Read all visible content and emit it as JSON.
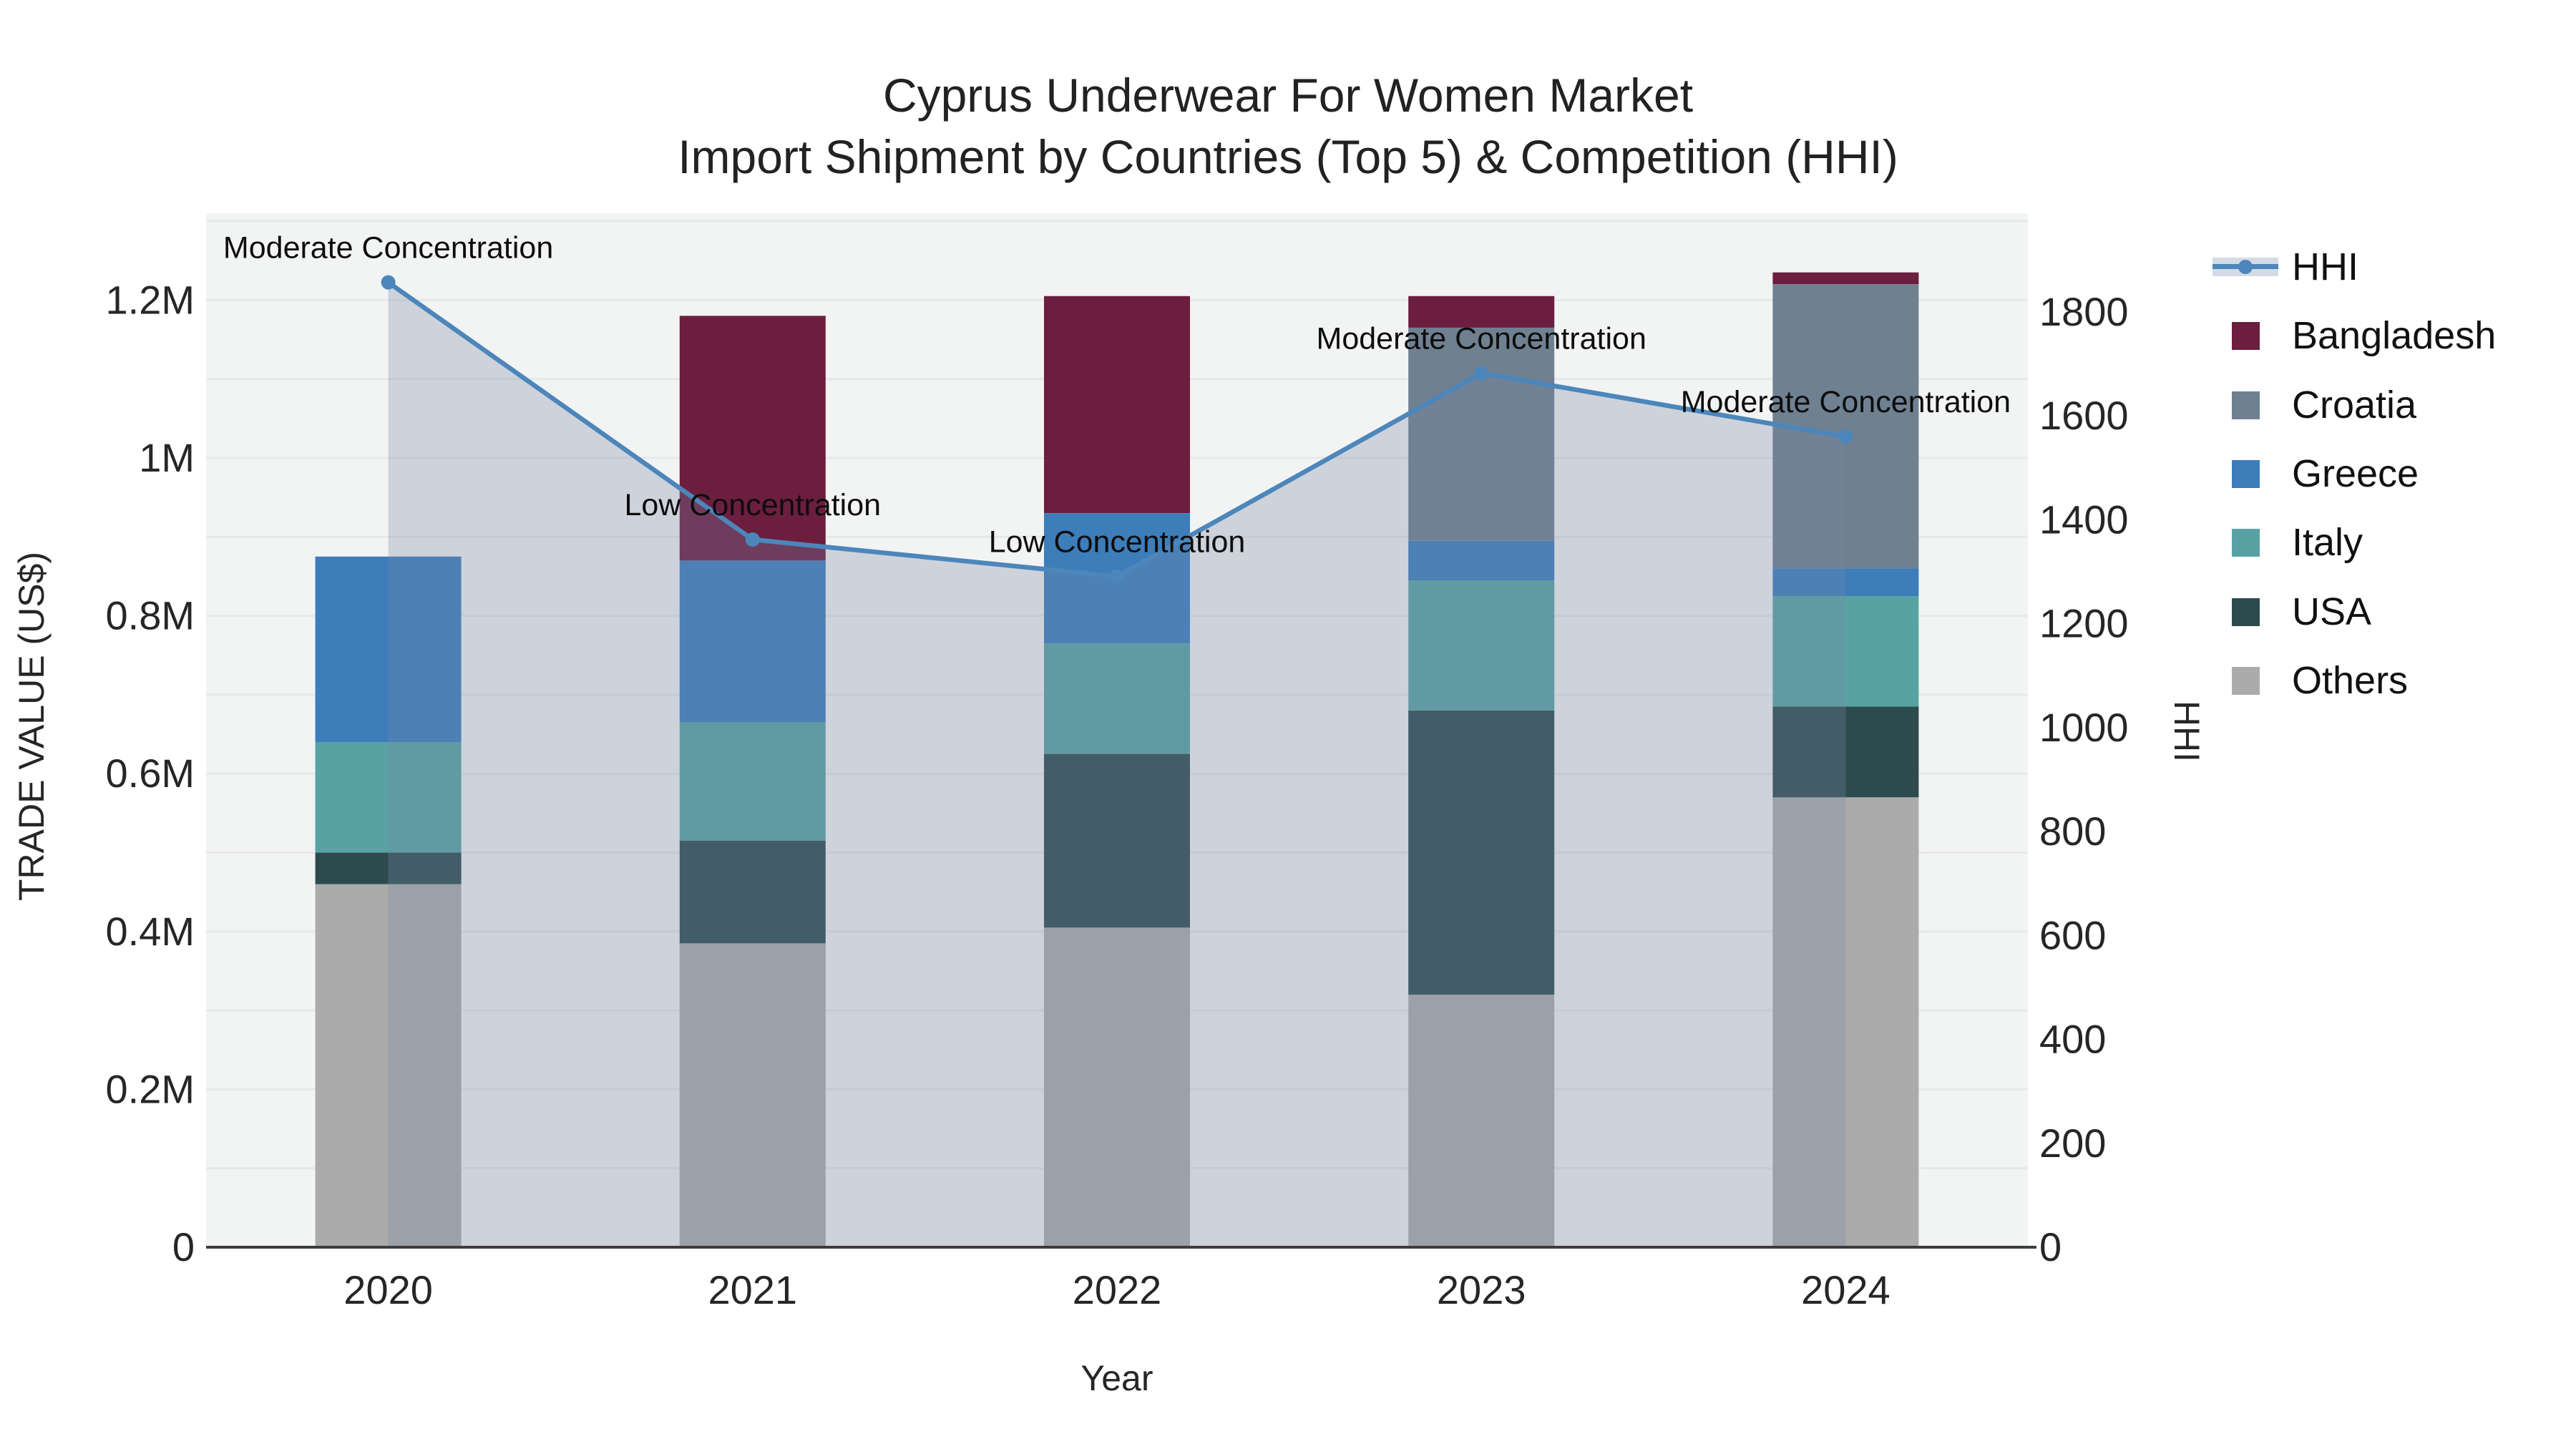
{
  "title": {
    "line1": "Cyprus Underwear For Women Market",
    "line2": "Import Shipment by Countries (Top 5) & Competition (HHI)"
  },
  "legend": {
    "items": [
      {
        "label": "HHI",
        "color": "#4c86ba",
        "type": "line+area"
      },
      {
        "label": "Bangladesh",
        "color": "#6b1e3e",
        "type": "bar"
      },
      {
        "label": "Croatia",
        "color": "#6f8091",
        "type": "bar"
      },
      {
        "label": "Greece",
        "color": "#3c7dba",
        "type": "bar"
      },
      {
        "label": "Italy",
        "color": "#59a2a4",
        "type": "bar"
      },
      {
        "label": "USA",
        "color": "#2d4b4e",
        "type": "bar"
      },
      {
        "label": "Others",
        "color": "#ababab",
        "type": "bar"
      }
    ]
  },
  "chart_data": {
    "type": "bar+line",
    "title": "Cyprus Underwear For Women Market — Import Shipment by Countries (Top 5) & Competition (HHI)",
    "categories": [
      "2020",
      "2021",
      "2022",
      "2023",
      "2024"
    ],
    "series": [
      {
        "name": "Bangladesh",
        "color": "#6b1e3e",
        "values": [
          0,
          310000,
          275000,
          40000,
          15000
        ]
      },
      {
        "name": "Croatia",
        "color": "#6f8091",
        "values": [
          0,
          0,
          0,
          270000,
          360000
        ]
      },
      {
        "name": "Greece",
        "color": "#3c7dba",
        "values": [
          235000,
          205000,
          165000,
          50000,
          35000
        ]
      },
      {
        "name": "Italy",
        "color": "#59a2a4",
        "values": [
          140000,
          150000,
          140000,
          165000,
          140000
        ]
      },
      {
        "name": "USA",
        "color": "#2d4b4e",
        "values": [
          40000,
          130000,
          220000,
          360000,
          115000
        ]
      },
      {
        "name": "Others",
        "color": "#ababab",
        "values": [
          460000,
          385000,
          405000,
          320000,
          570000
        ]
      }
    ],
    "stack_order_bottom_to_top": [
      "Others",
      "USA",
      "Italy",
      "Greece",
      "Croatia",
      "Bangladesh"
    ],
    "hhi": {
      "name": "HHI",
      "values": [
        1857,
        1362,
        1291,
        1682,
        1560
      ],
      "annotations": [
        "Moderate Concentration",
        "Low Concentration",
        "Low Concentration",
        "Moderate Concentration",
        "Moderate Concentration"
      ],
      "line_color": "#4c86ba",
      "area_fill": "rgba(119,137,167,0.30)"
    },
    "xlabel": "Year",
    "ylabel_left": "TRADE VALUE (US$)",
    "ylabel_right": "HHI",
    "ylim_left": [
      0,
      1310000
    ],
    "ylim_right": [
      0,
      1990
    ],
    "yticks_left": [
      {
        "value": 0,
        "label": "0"
      },
      {
        "value": 200000,
        "label": "0.2M"
      },
      {
        "value": 400000,
        "label": "0.4M"
      },
      {
        "value": 600000,
        "label": "0.6M"
      },
      {
        "value": 800000,
        "label": "0.8M"
      },
      {
        "value": 1000000,
        "label": "1M"
      },
      {
        "value": 1200000,
        "label": "1.2M"
      }
    ],
    "yticks_right": [
      {
        "value": 0,
        "label": "0"
      },
      {
        "value": 200,
        "label": "200"
      },
      {
        "value": 400,
        "label": "400"
      },
      {
        "value": 600,
        "label": "600"
      },
      {
        "value": 800,
        "label": "800"
      },
      {
        "value": 1000,
        "label": "1000"
      },
      {
        "value": 1200,
        "label": "1200"
      },
      {
        "value": 1400,
        "label": "1400"
      },
      {
        "value": 1600,
        "label": "1600"
      },
      {
        "value": 1800,
        "label": "1800"
      }
    ],
    "grid": {
      "horizontal_step": 100000,
      "color": "#e6e8ea"
    },
    "plot_bg": "#f2f3f3",
    "legend_position": "right"
  }
}
